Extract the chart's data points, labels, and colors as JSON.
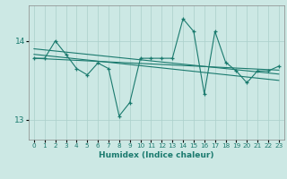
{
  "xlabel": "Humidex (Indice chaleur)",
  "bg_color": "#cce8e4",
  "grid_color": "#aacfca",
  "line_color": "#1a7a6e",
  "xlim": [
    -0.5,
    23.5
  ],
  "ylim": [
    12.75,
    14.45
  ],
  "yticks": [
    13,
    14
  ],
  "xticks": [
    0,
    1,
    2,
    3,
    4,
    5,
    6,
    7,
    8,
    9,
    10,
    11,
    12,
    13,
    14,
    15,
    16,
    17,
    18,
    19,
    20,
    21,
    22,
    23
  ],
  "x": [
    0,
    1,
    2,
    3,
    4,
    5,
    6,
    7,
    8,
    9,
    10,
    11,
    12,
    13,
    14,
    15,
    16,
    17,
    18,
    19,
    20,
    21,
    22,
    23
  ],
  "y_main": [
    13.78,
    13.78,
    14.0,
    13.83,
    13.65,
    13.57,
    13.72,
    13.65,
    13.05,
    13.22,
    13.78,
    13.78,
    13.78,
    13.78,
    14.28,
    14.12,
    13.33,
    14.12,
    13.73,
    13.62,
    13.47,
    13.62,
    13.62,
    13.68
  ],
  "trend1_x": [
    0,
    23
  ],
  "trend1_y": [
    13.78,
    13.63
  ],
  "trend2_x": [
    0,
    23
  ],
  "trend2_y": [
    13.83,
    13.5
  ],
  "trend3_x": [
    0,
    23
  ],
  "trend3_y": [
    13.9,
    13.58
  ]
}
